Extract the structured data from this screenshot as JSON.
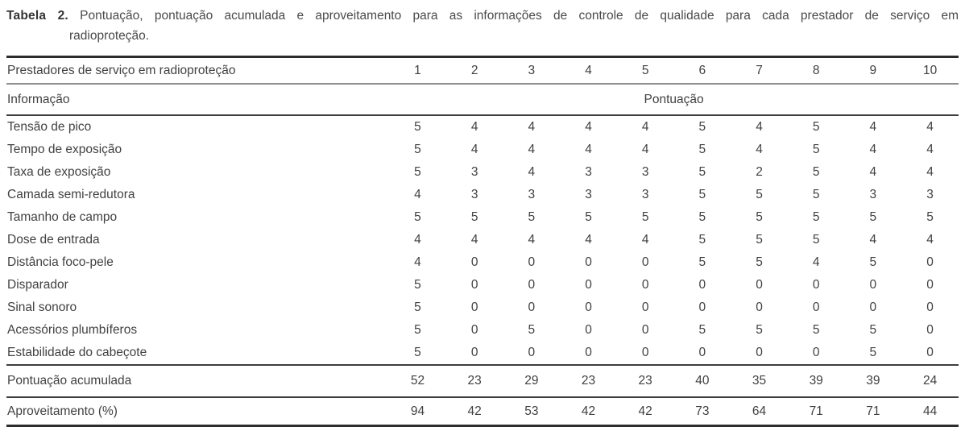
{
  "caption": {
    "label": "Tabela 2.",
    "line1": "Pontuação, pontuação acumulada e aproveitamento para as informações de controle de qualidade para cada prestador de serviço em",
    "line2": "radioproteção."
  },
  "table": {
    "header": {
      "col1": "Prestadores de serviço em radioproteção",
      "providers": [
        "1",
        "2",
        "3",
        "4",
        "5",
        "6",
        "7",
        "8",
        "9",
        "10"
      ],
      "info_label": "Informação",
      "score_label": "Pontuação"
    },
    "rows": [
      {
        "label": "Tensão de pico",
        "values": [
          5,
          4,
          4,
          4,
          4,
          5,
          4,
          5,
          4,
          4
        ]
      },
      {
        "label": "Tempo de exposição",
        "values": [
          5,
          4,
          4,
          4,
          4,
          5,
          4,
          5,
          4,
          4
        ]
      },
      {
        "label": "Taxa de exposição",
        "values": [
          5,
          3,
          4,
          3,
          3,
          5,
          2,
          5,
          4,
          4
        ]
      },
      {
        "label": "Camada semi-redutora",
        "values": [
          4,
          3,
          3,
          3,
          3,
          5,
          5,
          5,
          3,
          3
        ]
      },
      {
        "label": "Tamanho de campo",
        "values": [
          5,
          5,
          5,
          5,
          5,
          5,
          5,
          5,
          5,
          5
        ]
      },
      {
        "label": "Dose de entrada",
        "values": [
          4,
          4,
          4,
          4,
          4,
          5,
          5,
          5,
          4,
          4
        ]
      },
      {
        "label": "Distância foco-pele",
        "values": [
          4,
          0,
          0,
          0,
          0,
          5,
          5,
          4,
          5,
          0
        ]
      },
      {
        "label": "Disparador",
        "values": [
          5,
          0,
          0,
          0,
          0,
          0,
          0,
          0,
          0,
          0
        ]
      },
      {
        "label": "Sinal sonoro",
        "values": [
          5,
          0,
          0,
          0,
          0,
          0,
          0,
          0,
          0,
          0
        ]
      },
      {
        "label": "Acessórios plumbíferos",
        "values": [
          5,
          0,
          5,
          0,
          0,
          5,
          5,
          5,
          5,
          0
        ]
      },
      {
        "label": "Estabilidade do cabeçote",
        "values": [
          5,
          0,
          0,
          0,
          0,
          0,
          0,
          0,
          5,
          0
        ]
      }
    ],
    "footer": [
      {
        "label": "Pontuação acumulada",
        "values": [
          52,
          23,
          29,
          23,
          23,
          40,
          35,
          39,
          39,
          24
        ]
      },
      {
        "label": "Aproveitamento (%)",
        "values": [
          94,
          42,
          53,
          42,
          42,
          73,
          64,
          71,
          71,
          44
        ]
      }
    ]
  },
  "colors": {
    "background": "#ffffff",
    "text": "#414141",
    "caption_text": "#4a4a4a",
    "rule_heavy": "#2c2c2c",
    "rule_dark": "#3d3d3d",
    "rule_gray": "#8f8f8f"
  }
}
